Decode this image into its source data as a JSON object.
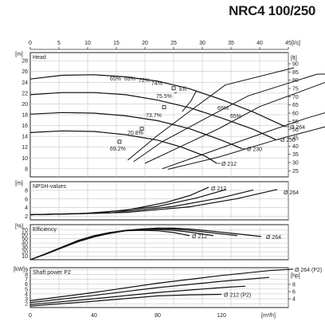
{
  "title": "NRC4 100/250",
  "chart_data": {
    "type": "line",
    "flow_axis_top": {
      "unit": "[l/s]",
      "ticks": [
        0,
        5,
        10,
        15,
        20,
        25,
        30,
        35,
        40,
        45
      ],
      "range": [
        0,
        45
      ]
    },
    "flow_axis_bottom": {
      "unit": "[m³/h]",
      "ticks": [
        0,
        40,
        80,
        120
      ],
      "range": [
        0,
        162
      ]
    },
    "head": {
      "label": "Head",
      "unit_left": "[m]",
      "unit_right": "[ft]",
      "ylim": [
        6.5,
        29.5
      ],
      "left_ticks": [
        8,
        10,
        12,
        14,
        16,
        18,
        20,
        22,
        24,
        26,
        28
      ],
      "right_ticks": [
        25,
        30,
        35,
        40,
        45,
        50,
        55,
        60,
        65,
        70,
        75,
        80,
        85,
        90
      ],
      "curves": [
        {
          "name": "Ø 264",
          "points": [
            [
              0,
              24.6
            ],
            [
              20,
              25.3
            ],
            [
              40,
              25.4
            ],
            [
              60,
              25.0
            ],
            [
              80,
              24.2
            ],
            [
              100,
              22.8
            ],
            [
              120,
              20.8
            ],
            [
              140,
              18.5
            ],
            [
              160,
              15.8
            ]
          ]
        },
        {
          "name": "Ø 250",
          "points": [
            [
              0,
              21.7
            ],
            [
              20,
              22.1
            ],
            [
              40,
              22.1
            ],
            [
              60,
              21.7
            ],
            [
              80,
              20.7
            ],
            [
              100,
              19.3
            ],
            [
              120,
              17.4
            ],
            [
              140,
              15.3
            ],
            [
              154,
              13.4
            ]
          ]
        },
        {
          "name": "Ø 230",
          "points": [
            [
              0,
              18.1
            ],
            [
              20,
              18.4
            ],
            [
              40,
              18.3
            ],
            [
              60,
              17.8
            ],
            [
              80,
              16.9
            ],
            [
              100,
              15.4
            ],
            [
              120,
              13.3
            ],
            [
              133,
              11.7
            ]
          ]
        },
        {
          "name": "Ø 212",
          "points": [
            [
              0,
              14.7
            ],
            [
              20,
              15.0
            ],
            [
              40,
              14.9
            ],
            [
              60,
              14.3
            ],
            [
              80,
              13.3
            ],
            [
              95,
              12.0
            ],
            [
              110,
              10.3
            ],
            [
              117,
              9.0
            ]
          ]
        }
      ],
      "efficiency_labels": [
        "65%",
        "69%",
        "72%",
        "74%",
        "Eff.",
        "75.5%",
        "73.7%",
        "70.8%",
        "69.2%",
        "69%",
        "65%"
      ],
      "efficiency_marks": [
        {
          "label": "69.2%",
          "flow": 56,
          "head": 13.0
        },
        {
          "label": "70.8%",
          "flow": 70,
          "head": 15.4
        },
        {
          "label": "73.7%",
          "flow": 84,
          "head": 19.4
        },
        {
          "label": "75.5%",
          "flow": 90,
          "head": 22.9
        }
      ]
    },
    "npsh": {
      "label": "NPSH-values",
      "unit_left": "[m]",
      "ylim": [
        1.2,
        10
      ],
      "left_ticks": [
        2,
        4,
        6,
        8
      ],
      "curves": [
        {
          "name": "Ø 212",
          "points": [
            [
              0,
              2.4
            ],
            [
              30,
              2.6
            ],
            [
              60,
              3.4
            ],
            [
              85,
              5.2
            ],
            [
              100,
              6.8
            ],
            [
              112,
              8.7
            ]
          ]
        },
        {
          "name": "Ø 230",
          "points": [
            [
              0,
              2.4
            ],
            [
              40,
              2.7
            ],
            [
              80,
              4.3
            ],
            [
              105,
              6.3
            ],
            [
              123,
              8.2
            ]
          ]
        },
        {
          "name": "Ø 250",
          "points": [
            [
              0,
              2.4
            ],
            [
              50,
              2.8
            ],
            [
              90,
              4.3
            ],
            [
              120,
              6.3
            ],
            [
              140,
              8.1
            ]
          ]
        },
        {
          "name": "Ø 264",
          "points": [
            [
              0,
              2.4
            ],
            [
              60,
              2.9
            ],
            [
              100,
              4.2
            ],
            [
              130,
              6.1
            ],
            [
              155,
              8.2
            ]
          ]
        }
      ]
    },
    "efficiency": {
      "label": "Efficiency",
      "unit_left": "[%]",
      "ylim": [
        2,
        82
      ],
      "left_ticks": [
        10,
        20,
        30,
        40,
        50,
        60,
        70
      ],
      "curves": [
        {
          "name": "Ø 212",
          "points": [
            [
              0,
              2
            ],
            [
              10,
              16
            ],
            [
              20,
              31
            ],
            [
              30,
              46
            ],
            [
              40,
              57
            ],
            [
              50,
              64
            ],
            [
              60,
              68
            ],
            [
              70,
              69
            ],
            [
              80,
              68
            ],
            [
              90,
              64
            ],
            [
              100,
              57
            ]
          ]
        },
        {
          "name": "Ø 230",
          "points": [
            [
              0,
              2
            ],
            [
              10,
              16
            ],
            [
              20,
              31
            ],
            [
              30,
              45
            ],
            [
              40,
              56
            ],
            [
              50,
              64
            ],
            [
              60,
              69
            ],
            [
              70,
              71
            ],
            [
              80,
              71
            ],
            [
              90,
              69
            ],
            [
              100,
              65
            ],
            [
              115,
              57
            ]
          ]
        },
        {
          "name": "Ø 250",
          "points": [
            [
              0,
              2
            ],
            [
              10,
              16
            ],
            [
              20,
              30
            ],
            [
              30,
              44
            ],
            [
              40,
              55
            ],
            [
              50,
              63
            ],
            [
              60,
              69
            ],
            [
              70,
              72
            ],
            [
              80,
              73
            ],
            [
              90,
              72
            ],
            [
              100,
              69
            ],
            [
              115,
              63
            ],
            [
              130,
              57
            ]
          ]
        },
        {
          "name": "Ø 264",
          "points": [
            [
              0,
              2
            ],
            [
              10,
              15
            ],
            [
              20,
              29
            ],
            [
              30,
              43
            ],
            [
              40,
              54
            ],
            [
              50,
              62
            ],
            [
              60,
              68
            ],
            [
              70,
              72
            ],
            [
              80,
              74
            ],
            [
              90,
              74
            ],
            [
              100,
              72
            ],
            [
              115,
              67
            ],
            [
              130,
              61
            ],
            [
              145,
              55
            ]
          ]
        }
      ]
    },
    "power": {
      "label": "Shaft power P2",
      "unit_left": "[kW]",
      "unit_right": "[hp]",
      "ylim": [
        1.2,
        9.4
      ],
      "left_ticks": [
        2,
        3,
        4,
        5,
        6,
        7,
        8,
        9
      ],
      "right_ticks": [
        4,
        6,
        8
      ],
      "curves": [
        {
          "name": "Ø 264 (P2)",
          "points": [
            [
              0,
              2.6
            ],
            [
              40,
              4.3
            ],
            [
              80,
              6.2
            ],
            [
              120,
              7.8
            ],
            [
              150,
              8.8
            ],
            [
              165,
              9.1
            ]
          ]
        },
        {
          "name": "Ø 250",
          "points": [
            [
              0,
              2.2
            ],
            [
              40,
              3.7
            ],
            [
              80,
              5.3
            ],
            [
              120,
              6.6
            ],
            [
              150,
              7.4
            ]
          ]
        },
        {
          "name": "Ø 230",
          "points": [
            [
              0,
              1.8
            ],
            [
              40,
              3.0
            ],
            [
              80,
              4.3
            ],
            [
              120,
              5.3
            ],
            [
              135,
              5.6
            ]
          ]
        },
        {
          "name": "Ø 212 (P2)",
          "points": [
            [
              0,
              1.5
            ],
            [
              40,
              2.5
            ],
            [
              80,
              3.6
            ],
            [
              100,
              3.8
            ],
            [
              120,
              3.9
            ]
          ]
        }
      ]
    },
    "grid": true
  }
}
